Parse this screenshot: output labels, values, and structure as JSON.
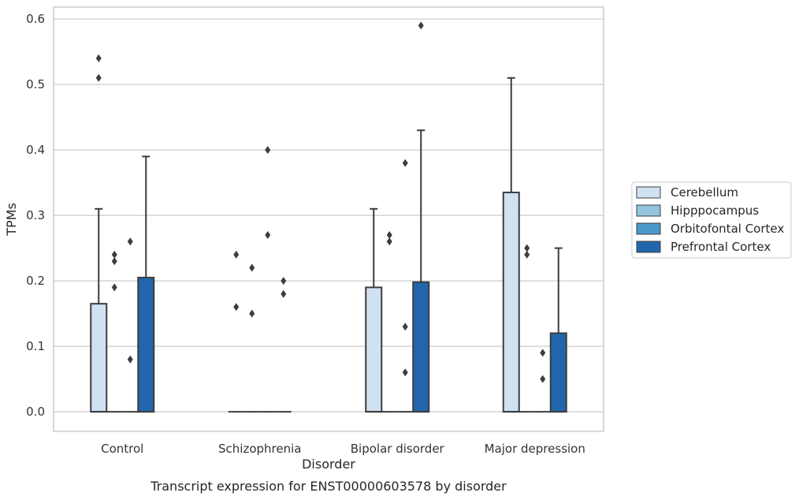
{
  "chart_data": {
    "type": "box",
    "caption": "Transcript expression for ENST00000603578 by disorder",
    "xlabel": "Disorder",
    "ylabel": "TPMs",
    "ylim": [
      -0.03,
      0.62
    ],
    "yticks": [
      0.0,
      0.1,
      0.2,
      0.3,
      0.4,
      0.5,
      0.6
    ],
    "ytick_labels": [
      "0.0",
      "0.1",
      "0.2",
      "0.3",
      "0.4",
      "0.5",
      "0.6"
    ],
    "categories": [
      "Control",
      "Schizophrenia",
      "Bipolar disorder",
      "Major depression"
    ],
    "grid": "horizontal",
    "legend_position": "right",
    "series": [
      {
        "name": "Cerebellum",
        "color": "#d0e1f2",
        "boxes": [
          {
            "q1": 0.0,
            "median": 0.0,
            "q3": 0.165,
            "whisker_low": 0.0,
            "whisker_high": 0.31,
            "outliers": [
              0.51,
              0.54
            ]
          },
          {
            "q1": 0.0,
            "median": 0.0,
            "q3": 0.0,
            "whisker_low": 0.0,
            "whisker_high": 0.0,
            "outliers": [
              0.16,
              0.24
            ]
          },
          {
            "q1": 0.0,
            "median": 0.0,
            "q3": 0.19,
            "whisker_low": 0.0,
            "whisker_high": 0.31,
            "outliers": []
          },
          {
            "q1": 0.0,
            "median": 0.0,
            "q3": 0.335,
            "whisker_low": 0.0,
            "whisker_high": 0.51,
            "outliers": []
          }
        ]
      },
      {
        "name": "Hipppocampus",
        "color": "#94c4df",
        "boxes": [
          {
            "q1": 0.0,
            "median": 0.0,
            "q3": 0.0,
            "whisker_low": 0.0,
            "whisker_high": 0.0,
            "outliers": [
              0.19,
              0.23,
              0.24
            ]
          },
          {
            "q1": 0.0,
            "median": 0.0,
            "q3": 0.0,
            "whisker_low": 0.0,
            "whisker_high": 0.0,
            "outliers": [
              0.15,
              0.22
            ]
          },
          {
            "q1": 0.0,
            "median": 0.0,
            "q3": 0.0,
            "whisker_low": 0.0,
            "whisker_high": 0.0,
            "outliers": [
              0.26,
              0.27
            ]
          },
          {
            "q1": 0.0,
            "median": 0.0,
            "q3": 0.0,
            "whisker_low": 0.0,
            "whisker_high": 0.0,
            "outliers": [
              0.24,
              0.25
            ]
          }
        ]
      },
      {
        "name": "Orbitofontal Cortex",
        "color": "#4a98c9",
        "boxes": [
          {
            "q1": 0.0,
            "median": 0.0,
            "q3": 0.0,
            "whisker_low": 0.0,
            "whisker_high": 0.0,
            "outliers": [
              0.08,
              0.26
            ]
          },
          {
            "q1": 0.0,
            "median": 0.0,
            "q3": 0.0,
            "whisker_low": 0.0,
            "whisker_high": 0.0,
            "outliers": [
              0.27,
              0.4
            ]
          },
          {
            "q1": 0.0,
            "median": 0.0,
            "q3": 0.0,
            "whisker_low": 0.0,
            "whisker_high": 0.0,
            "outliers": [
              0.06,
              0.13,
              0.38
            ]
          },
          {
            "q1": 0.0,
            "median": 0.0,
            "q3": 0.0,
            "whisker_low": 0.0,
            "whisker_high": 0.0,
            "outliers": [
              0.05,
              0.09
            ]
          }
        ]
      },
      {
        "name": "Prefrontal Cortex",
        "color": "#2166ac",
        "boxes": [
          {
            "q1": 0.0,
            "median": 0.0,
            "q3": 0.205,
            "whisker_low": 0.0,
            "whisker_high": 0.39,
            "outliers": []
          },
          {
            "q1": 0.0,
            "median": 0.0,
            "q3": 0.0,
            "whisker_low": 0.0,
            "whisker_high": 0.0,
            "outliers": [
              0.18,
              0.2
            ]
          },
          {
            "q1": 0.0,
            "median": 0.0,
            "q3": 0.198,
            "whisker_low": 0.0,
            "whisker_high": 0.43,
            "outliers": [
              0.59
            ]
          },
          {
            "q1": 0.0,
            "median": 0.0,
            "q3": 0.12,
            "whisker_low": 0.0,
            "whisker_high": 0.25,
            "outliers": []
          }
        ]
      }
    ]
  }
}
